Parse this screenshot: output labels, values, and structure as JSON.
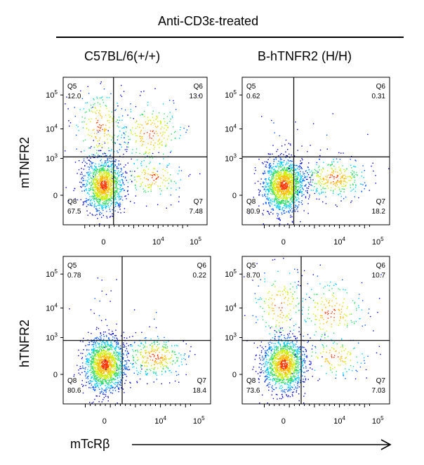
{
  "chart_data": {
    "type": "scatter",
    "title": "Anti-CD3ε-treated",
    "xlabel": "mTcRβ",
    "columns": [
      "C57BL/6(+/+)",
      "B-hTNFR2 (H/H)"
    ],
    "rows": [
      "mTNFR2",
      "hTNFR2"
    ],
    "x_ticks": [
      "0",
      "10^4",
      "10^5"
    ],
    "y_ticks": [
      "0",
      "10^3",
      "10^4",
      "10^5"
    ],
    "scale": "biexponential",
    "panels": [
      {
        "column": "C57BL/6(+/+)",
        "row": "mTNFR2",
        "quadrants": {
          "Q5": "12.0",
          "Q6": "13.0",
          "Q7": "7.48",
          "Q8": "67.5"
        },
        "gate_x": 0.35,
        "gate_y": 0.54
      },
      {
        "column": "B-hTNFR2 (H/H)",
        "row": "mTNFR2",
        "quadrants": {
          "Q5": "0.62",
          "Q6": "0.31",
          "Q7": "18.2",
          "Q8": "80.9"
        },
        "gate_x": 0.35,
        "gate_y": 0.54
      },
      {
        "column": "C57BL/6(+/+)",
        "row": "hTNFR2",
        "quadrants": {
          "Q5": "0.78",
          "Q6": "0.22",
          "Q7": "18.4",
          "Q8": "80.6"
        },
        "gate_x": 0.4,
        "gate_y": 0.57
      },
      {
        "column": "B-hTNFR2 (H/H)",
        "row": "hTNFR2",
        "quadrants": {
          "Q5": "8.70",
          "Q6": "10.7",
          "Q7": "7.03",
          "Q8": "73.6"
        },
        "gate_x": 0.4,
        "gate_y": 0.57
      }
    ],
    "colors": {
      "density": [
        "#0000cc",
        "#0055ff",
        "#00ccff",
        "#33dd66",
        "#ccee00",
        "#ffbb00",
        "#ff3300"
      ],
      "gate": "#000000"
    }
  }
}
